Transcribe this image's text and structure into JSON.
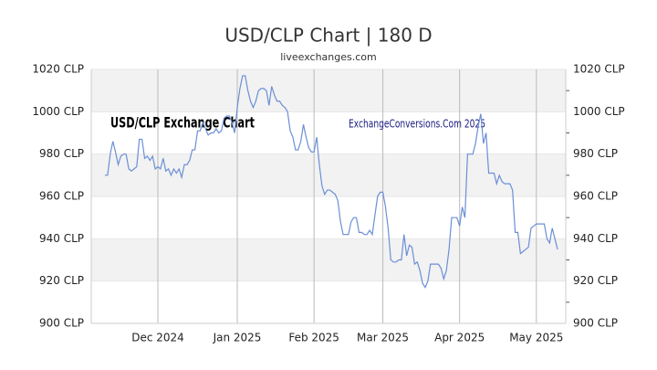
{
  "chart_data": {
    "type": "line",
    "title": "USD/CLP Chart | 180 D",
    "subtitle": "liveexchanges.com",
    "annotations": [
      "USD/CLP Exchange Chart",
      "ExchangeConversions.Com 2025"
    ],
    "categories": [
      null,
      null,
      null,
      null,
      null,
      null,
      null,
      null,
      null,
      null,
      null,
      null,
      null,
      null,
      null,
      null,
      null,
      null,
      null,
      null,
      "Dec 2024",
      null,
      null,
      null,
      null,
      null,
      null,
      null,
      null,
      null,
      null,
      null,
      null,
      null,
      null,
      null,
      null,
      null,
      null,
      null,
      null,
      null,
      null,
      null,
      null,
      null,
      null,
      null,
      null,
      null,
      "Jan 2025",
      null,
      null,
      null,
      null,
      null,
      null,
      null,
      null,
      null,
      null,
      null,
      null,
      null,
      null,
      null,
      null,
      null,
      null,
      null,
      null,
      null,
      null,
      null,
      null,
      null,
      null,
      null,
      null,
      "Feb 2025",
      null,
      null,
      null,
      null,
      null,
      null,
      null,
      null,
      null,
      null,
      null,
      null,
      null,
      null,
      null,
      null,
      null,
      null,
      null,
      null,
      null,
      null,
      null,
      null,
      null,
      "Mar 2025",
      null,
      null,
      null,
      null,
      null,
      null,
      null,
      null,
      null,
      null,
      null,
      null,
      null,
      null,
      null,
      null,
      null,
      null,
      null,
      null,
      null,
      null,
      null,
      null,
      null,
      null,
      null,
      null,
      "Apr 2025",
      null,
      null,
      null,
      null,
      null,
      null,
      null,
      null,
      null,
      null,
      null,
      null,
      null,
      null,
      null,
      null,
      null,
      null,
      null,
      null,
      null,
      null,
      null,
      null,
      null,
      null,
      null,
      null,
      "May 2025",
      null,
      null,
      null,
      null,
      null,
      null,
      null,
      null
    ],
    "series": [
      {
        "name": "USD/CLP",
        "color": "#6b8fd6",
        "values": [
          970,
          970,
          980,
          986,
          981,
          975,
          979,
          980,
          980,
          973,
          972,
          973,
          974,
          987,
          987,
          978,
          979,
          977,
          979,
          973,
          974,
          973,
          978,
          972,
          973,
          970,
          973,
          971,
          973,
          969,
          975,
          975,
          977,
          982,
          982,
          991,
          991,
          995,
          992,
          989,
          990,
          990,
          992,
          990,
          991,
          997,
          998,
          998,
          995,
          990,
          1002,
          1011,
          1017,
          1017,
          1010,
          1005,
          1002,
          1005,
          1010,
          1011,
          1011,
          1010,
          1003,
          1012,
          1008,
          1005,
          1005,
          1003,
          1002,
          1000,
          991,
          988,
          982,
          982,
          986,
          994,
          988,
          983,
          981,
          981,
          988,
          975,
          965,
          961,
          963,
          963,
          962,
          961,
          958,
          948,
          942,
          942,
          942,
          948,
          950,
          950,
          943,
          943,
          942,
          942,
          944,
          942,
          951,
          960,
          962,
          962,
          955,
          945,
          930,
          929,
          929,
          930,
          930,
          942,
          932,
          937,
          936,
          928,
          929,
          925,
          919,
          917,
          920,
          928,
          928,
          928,
          928,
          926,
          921,
          925,
          935,
          950,
          950,
          950,
          946,
          955,
          950,
          980,
          980,
          980,
          985,
          993,
          999,
          985,
          990,
          971,
          971,
          971,
          966,
          970,
          967,
          966,
          966,
          966,
          963,
          943,
          943,
          933,
          934,
          935,
          936,
          945,
          946,
          947,
          947,
          947,
          947,
          940,
          938,
          945,
          940,
          935
        ]
      }
    ],
    "ylim": [
      900,
      1020
    ],
    "yticks": [
      {
        "value": 900,
        "label": "900 CLP"
      },
      {
        "value": 920,
        "label": "920 CLP"
      },
      {
        "value": 940,
        "label": "940 CLP"
      },
      {
        "value": 960,
        "label": "960 CLP"
      },
      {
        "value": 980,
        "label": "980 CLP"
      },
      {
        "value": 1000,
        "label": "1000 CLP"
      },
      {
        "value": 1020,
        "label": "1020 CLP"
      }
    ],
    "y2lim": [
      900,
      1020
    ],
    "y2ticks": [
      {
        "value": 900,
        "label": "900 CLP"
      },
      {
        "value": 920,
        "label": "920 CLP"
      },
      {
        "value": 940,
        "label": "940 CLP"
      },
      {
        "value": 960,
        "label": "960 CLP"
      },
      {
        "value": 980,
        "label": "980 CLP"
      },
      {
        "value": 1000,
        "label": "1000 CLP"
      },
      {
        "value": 1020,
        "label": "1020 CLP"
      }
    ],
    "grid": true
  }
}
